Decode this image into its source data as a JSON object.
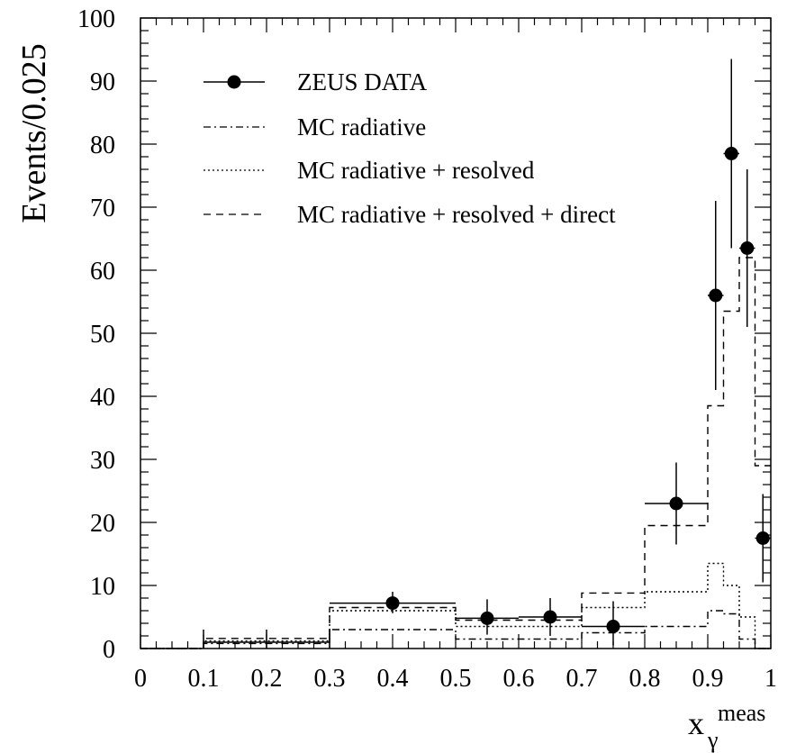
{
  "chart_data": {
    "type": "histogram",
    "title": "",
    "ylabel": "Events/0.025",
    "xlabel": {
      "base": "x",
      "subscript": "γ",
      "superscript": "meas"
    },
    "xlim": [
      0,
      1
    ],
    "ylim": [
      0,
      100
    ],
    "x_ticks": [
      "0",
      "0.1",
      "0.2",
      "0.3",
      "0.4",
      "0.5",
      "0.6",
      "0.7",
      "0.8",
      "0.9",
      "1"
    ],
    "y_ticks": [
      "0",
      "10",
      "20",
      "30",
      "40",
      "50",
      "60",
      "70",
      "80",
      "90",
      "100"
    ],
    "legend": [
      {
        "label": "ZEUS DATA",
        "style": "marker"
      },
      {
        "label": "MC radiative",
        "style": "dashdot"
      },
      {
        "label": "MC radiative + resolved",
        "style": "dotted"
      },
      {
        "label": "MC radiative + resolved + direct",
        "style": "dashed"
      }
    ],
    "data_points": [
      {
        "x": 0.4,
        "y": 7.2,
        "xerr": [
          0.3,
          0.5
        ],
        "yerr": [
          5.6,
          9.0
        ]
      },
      {
        "x": 0.55,
        "y": 4.8,
        "xerr": [
          0.5,
          0.6
        ],
        "yerr": [
          2.2,
          7.8
        ]
      },
      {
        "x": 0.65,
        "y": 5.0,
        "xerr": [
          0.6,
          0.7
        ],
        "yerr": [
          2.0,
          8.0
        ]
      },
      {
        "x": 0.75,
        "y": 3.5,
        "xerr": [
          0.7,
          0.8
        ],
        "yerr": [
          0.5,
          7.5
        ]
      },
      {
        "x": 0.85,
        "y": 23.0,
        "xerr": [
          0.8,
          0.9
        ],
        "yerr": [
          16.5,
          29.5
        ]
      },
      {
        "x": 0.9125,
        "y": 56.0,
        "xerr": [
          0.9,
          0.925
        ],
        "yerr": [
          41.0,
          71.0
        ]
      },
      {
        "x": 0.9375,
        "y": 78.5,
        "xerr": [
          0.925,
          0.95
        ],
        "yerr": [
          63.5,
          93.5
        ]
      },
      {
        "x": 0.9625,
        "y": 63.5,
        "xerr": [
          0.95,
          0.975
        ],
        "yerr": [
          51.0,
          76.0
        ]
      },
      {
        "x": 0.9875,
        "y": 17.5,
        "xerr": [
          0.975,
          1.0
        ],
        "yerr": [
          10.5,
          24.5
        ]
      }
    ],
    "data_low_bin": {
      "x": [
        0.1,
        0.3
      ],
      "y": 1.0,
      "yerr_at_x": [
        0.1,
        0.2,
        0.3
      ],
      "yerr": [
        0,
        3
      ]
    },
    "series": [
      {
        "name": "MC radiative",
        "style": "dashdot",
        "edges": [
          0,
          0.1,
          0.3,
          0.5,
          0.7,
          0.8,
          0.9,
          0.925,
          0.95,
          0.975,
          1.0
        ],
        "values": [
          0,
          0.8,
          3.0,
          1.5,
          2.5,
          3.5,
          6.0,
          5.5,
          1.5,
          0.0
        ]
      },
      {
        "name": "MC radiative + resolved",
        "style": "dotted",
        "edges": [
          0,
          0.1,
          0.3,
          0.5,
          0.7,
          0.8,
          0.9,
          0.925,
          0.95,
          0.975,
          1.0
        ],
        "values": [
          0,
          1.2,
          6.0,
          3.5,
          6.5,
          9.0,
          13.5,
          10.0,
          5.0,
          0.0
        ]
      },
      {
        "name": "MC radiative + resolved + direct",
        "style": "dashed",
        "edges": [
          0,
          0.1,
          0.3,
          0.5,
          0.7,
          0.8,
          0.9,
          0.925,
          0.95,
          0.975,
          1.0
        ],
        "values": [
          0,
          1.6,
          6.5,
          4.5,
          8.8,
          19.5,
          38.5,
          53.5,
          62.0,
          29.0
        ]
      }
    ]
  }
}
